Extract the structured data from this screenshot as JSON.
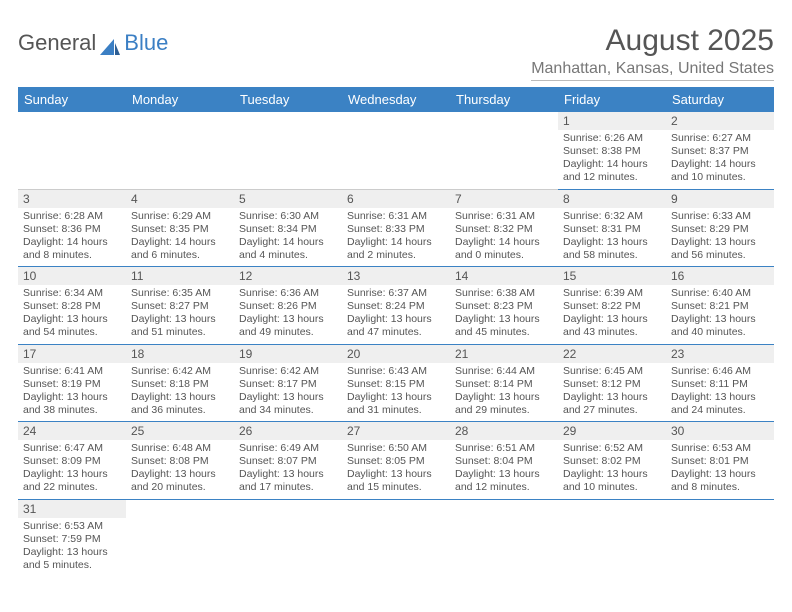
{
  "brand": {
    "part1": "General",
    "part2": "Blue"
  },
  "title": "August 2025",
  "location": "Manhattan, Kansas, United States",
  "colors": {
    "header_bg": "#3b82c4",
    "header_text": "#ffffff",
    "daynum_bg": "#efefef",
    "cell_border": "#3b82c4",
    "text": "#555555"
  },
  "weekdays": [
    "Sunday",
    "Monday",
    "Tuesday",
    "Wednesday",
    "Thursday",
    "Friday",
    "Saturday"
  ],
  "weeks": [
    [
      null,
      null,
      null,
      null,
      null,
      {
        "n": "1",
        "sr": "6:26 AM",
        "ss": "8:38 PM",
        "dl": "14 hours and 12 minutes."
      },
      {
        "n": "2",
        "sr": "6:27 AM",
        "ss": "8:37 PM",
        "dl": "14 hours and 10 minutes."
      }
    ],
    [
      {
        "n": "3",
        "sr": "6:28 AM",
        "ss": "8:36 PM",
        "dl": "14 hours and 8 minutes."
      },
      {
        "n": "4",
        "sr": "6:29 AM",
        "ss": "8:35 PM",
        "dl": "14 hours and 6 minutes."
      },
      {
        "n": "5",
        "sr": "6:30 AM",
        "ss": "8:34 PM",
        "dl": "14 hours and 4 minutes."
      },
      {
        "n": "6",
        "sr": "6:31 AM",
        "ss": "8:33 PM",
        "dl": "14 hours and 2 minutes."
      },
      {
        "n": "7",
        "sr": "6:31 AM",
        "ss": "8:32 PM",
        "dl": "14 hours and 0 minutes."
      },
      {
        "n": "8",
        "sr": "6:32 AM",
        "ss": "8:31 PM",
        "dl": "13 hours and 58 minutes."
      },
      {
        "n": "9",
        "sr": "6:33 AM",
        "ss": "8:29 PM",
        "dl": "13 hours and 56 minutes."
      }
    ],
    [
      {
        "n": "10",
        "sr": "6:34 AM",
        "ss": "8:28 PM",
        "dl": "13 hours and 54 minutes."
      },
      {
        "n": "11",
        "sr": "6:35 AM",
        "ss": "8:27 PM",
        "dl": "13 hours and 51 minutes."
      },
      {
        "n": "12",
        "sr": "6:36 AM",
        "ss": "8:26 PM",
        "dl": "13 hours and 49 minutes."
      },
      {
        "n": "13",
        "sr": "6:37 AM",
        "ss": "8:24 PM",
        "dl": "13 hours and 47 minutes."
      },
      {
        "n": "14",
        "sr": "6:38 AM",
        "ss": "8:23 PM",
        "dl": "13 hours and 45 minutes."
      },
      {
        "n": "15",
        "sr": "6:39 AM",
        "ss": "8:22 PM",
        "dl": "13 hours and 43 minutes."
      },
      {
        "n": "16",
        "sr": "6:40 AM",
        "ss": "8:21 PM",
        "dl": "13 hours and 40 minutes."
      }
    ],
    [
      {
        "n": "17",
        "sr": "6:41 AM",
        "ss": "8:19 PM",
        "dl": "13 hours and 38 minutes."
      },
      {
        "n": "18",
        "sr": "6:42 AM",
        "ss": "8:18 PM",
        "dl": "13 hours and 36 minutes."
      },
      {
        "n": "19",
        "sr": "6:42 AM",
        "ss": "8:17 PM",
        "dl": "13 hours and 34 minutes."
      },
      {
        "n": "20",
        "sr": "6:43 AM",
        "ss": "8:15 PM",
        "dl": "13 hours and 31 minutes."
      },
      {
        "n": "21",
        "sr": "6:44 AM",
        "ss": "8:14 PM",
        "dl": "13 hours and 29 minutes."
      },
      {
        "n": "22",
        "sr": "6:45 AM",
        "ss": "8:12 PM",
        "dl": "13 hours and 27 minutes."
      },
      {
        "n": "23",
        "sr": "6:46 AM",
        "ss": "8:11 PM",
        "dl": "13 hours and 24 minutes."
      }
    ],
    [
      {
        "n": "24",
        "sr": "6:47 AM",
        "ss": "8:09 PM",
        "dl": "13 hours and 22 minutes."
      },
      {
        "n": "25",
        "sr": "6:48 AM",
        "ss": "8:08 PM",
        "dl": "13 hours and 20 minutes."
      },
      {
        "n": "26",
        "sr": "6:49 AM",
        "ss": "8:07 PM",
        "dl": "13 hours and 17 minutes."
      },
      {
        "n": "27",
        "sr": "6:50 AM",
        "ss": "8:05 PM",
        "dl": "13 hours and 15 minutes."
      },
      {
        "n": "28",
        "sr": "6:51 AM",
        "ss": "8:04 PM",
        "dl": "13 hours and 12 minutes."
      },
      {
        "n": "29",
        "sr": "6:52 AM",
        "ss": "8:02 PM",
        "dl": "13 hours and 10 minutes."
      },
      {
        "n": "30",
        "sr": "6:53 AM",
        "ss": "8:01 PM",
        "dl": "13 hours and 8 minutes."
      }
    ],
    [
      {
        "n": "31",
        "sr": "6:53 AM",
        "ss": "7:59 PM",
        "dl": "13 hours and 5 minutes."
      },
      null,
      null,
      null,
      null,
      null,
      null
    ]
  ],
  "labels": {
    "sunrise": "Sunrise:",
    "sunset": "Sunset:",
    "daylight": "Daylight:"
  }
}
